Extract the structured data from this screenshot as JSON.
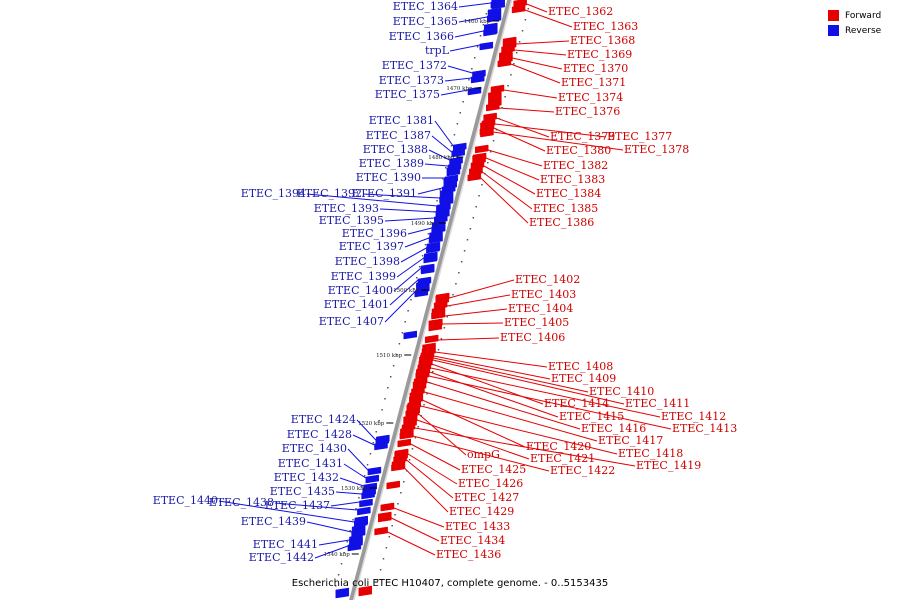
{
  "caption": "Escherichia coli ETEC H10407, complete genome. - 0..5153435",
  "legend": [
    {
      "label": "Forward",
      "color": "#e60000"
    },
    {
      "label": "Reverse",
      "color": "#1010e6"
    }
  ],
  "colors": {
    "forward": "#e60000",
    "reverse": "#1010e6",
    "backbone": "#7a7a7a"
  },
  "ticks": [
    "1460 kbp",
    "1470 kbp",
    "1480 kbp",
    "1490 kbp",
    "1500 kbp",
    "1510 kbp",
    "1520 kbp",
    "1530 kbp",
    "1540 kbp"
  ],
  "reverse_genes": [
    "ETEC_1364",
    "ETEC_1365",
    "ETEC_1366",
    "trpL",
    "ETEC_1372",
    "ETEC_1373",
    "ETEC_1375",
    "ETEC_1381",
    "ETEC_1387",
    "ETEC_1388",
    "ETEC_1389",
    "ETEC_1390",
    "ETEC_1391",
    "ETEC_1392",
    "ETEC_1394",
    "ETEC_1393",
    "ETEC_1395",
    "ETEC_1396",
    "ETEC_1397",
    "ETEC_1398",
    "ETEC_1399",
    "ETEC_1400",
    "ETEC_1401",
    "ETEC_1407",
    "ETEC_1424",
    "ETEC_1428",
    "ETEC_1430",
    "ETEC_1431",
    "ETEC_1432",
    "ETEC_1435",
    "ETEC_1437",
    "ETEC_1438",
    "ETEC_1440",
    "ETEC_1439",
    "ETEC_1441",
    "ETEC_1442"
  ],
  "forward_genes": [
    "ETEC_1362",
    "ETEC_1363",
    "ETEC_1368",
    "ETEC_1369",
    "ETEC_1370",
    "ETEC_1371",
    "ETEC_1374",
    "ETEC_1376",
    "ETEC_1379",
    "ETEC_1377",
    "ETEC_1380",
    "ETEC_1378",
    "ETEC_1382",
    "ETEC_1383",
    "ETEC_1384",
    "ETEC_1385",
    "ETEC_1386",
    "ETEC_1402",
    "ETEC_1403",
    "ETEC_1404",
    "ETEC_1405",
    "ETEC_1406",
    "ETEC_1408",
    "ETEC_1409",
    "ETEC_1410",
    "ETEC_1411",
    "ETEC_1414",
    "ETEC_1412",
    "ETEC_1415",
    "ETEC_1413",
    "ETEC_1416",
    "ETEC_1417",
    "ETEC_1420",
    "ETEC_1418",
    "ompG",
    "ETEC_1421",
    "ETEC_1419",
    "ETEC_1425",
    "ETEC_1422",
    "ETEC_1426",
    "ETEC_1427",
    "ETEC_1429",
    "ETEC_1433",
    "ETEC_1434",
    "ETEC_1436"
  ]
}
